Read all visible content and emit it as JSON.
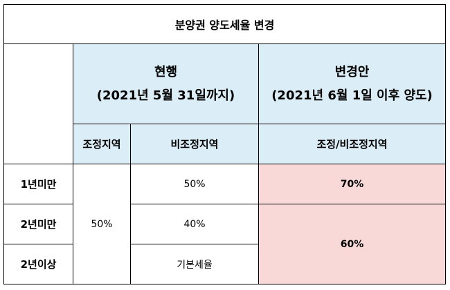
{
  "title": "분양권 양도세율 변경",
  "current": {
    "heading": "현행",
    "period": "(2021년 5월 31일까지)",
    "col_adjusted": "조정지역",
    "col_non_adjusted": "비조정지역"
  },
  "proposed": {
    "heading": "변경안",
    "period": "(2021년 6월 1일 이후 양도)",
    "col_both": "조정/비조정지역"
  },
  "rows": [
    {
      "label": "1년미만",
      "non_adjusted": "50%",
      "proposed": "70%"
    },
    {
      "label": "2년미만",
      "non_adjusted": "40%"
    },
    {
      "label": "2년이상",
      "non_adjusted": "기본세율"
    }
  ],
  "current_adjusted_value": "50%",
  "proposed_over_1yr": "60%",
  "colors": {
    "header_bg": "#dbeef7",
    "highlight_bg": "#f8d9d8",
    "border": "#000000"
  }
}
